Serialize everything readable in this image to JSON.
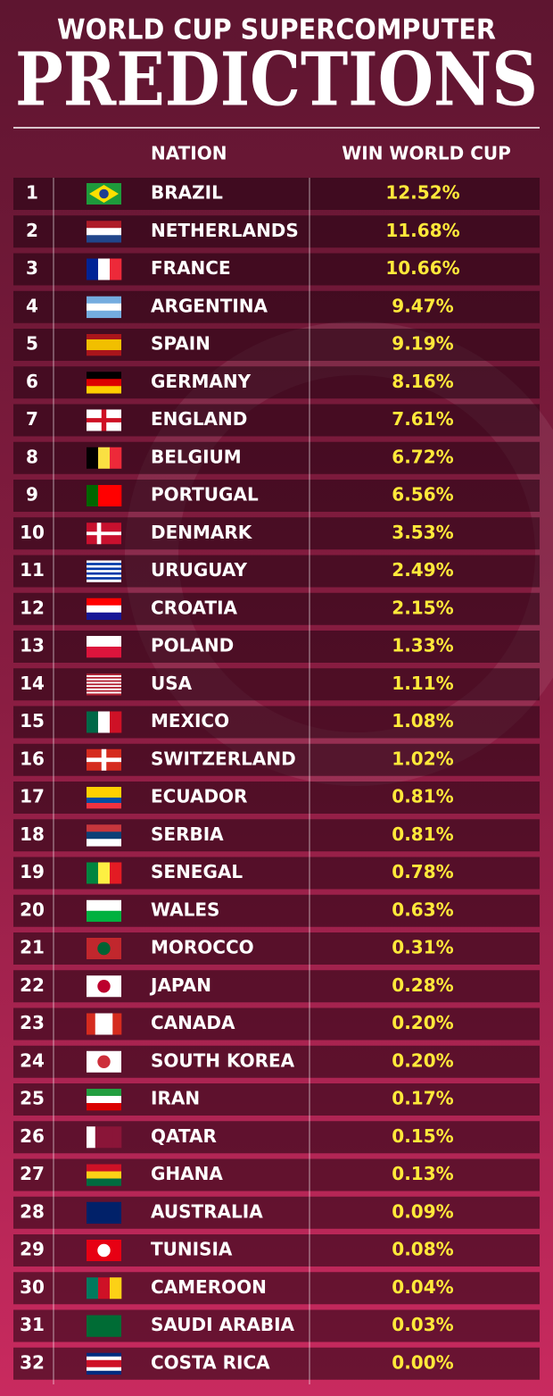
{
  "header": {
    "title": "WORLD CUP SUPERCOMPUTER",
    "subtitle": "PREDICTIONS"
  },
  "table": {
    "columns": [
      "NATION",
      "WIN WORLD CUP"
    ],
    "rows": [
      [
        1,
        "BRAZIL",
        "12.52%"
      ],
      [
        2,
        "NETHERLANDS",
        "11.68%"
      ],
      [
        3,
        "FRANCE",
        "10.66%"
      ],
      [
        4,
        "ARGENTINA",
        "9.47%"
      ],
      [
        5,
        "SPAIN",
        "9.19%"
      ],
      [
        6,
        "GERMANY",
        "8.16%"
      ],
      [
        7,
        "ENGLAND",
        "7.61%"
      ],
      [
        8,
        "BELGIUM",
        "6.72%"
      ],
      [
        9,
        "PORTUGAL",
        "6.56%"
      ],
      [
        10,
        "DENMARK",
        "3.53%"
      ],
      [
        11,
        "URUGUAY",
        "2.49%"
      ],
      [
        12,
        "CROATIA",
        "2.15%"
      ],
      [
        13,
        "POLAND",
        "1.33%"
      ],
      [
        14,
        "USA",
        "1.11%"
      ],
      [
        15,
        "MEXICO",
        "1.08%"
      ],
      [
        16,
        "SWITZERLAND",
        "1.02%"
      ],
      [
        17,
        "ECUADOR",
        "0.81%"
      ],
      [
        18,
        "SERBIA",
        "0.81%"
      ],
      [
        19,
        "SENEGAL",
        "0.78%"
      ],
      [
        20,
        "WALES",
        "0.63%"
      ],
      [
        21,
        "MOROCCO",
        "0.31%"
      ],
      [
        22,
        "JAPAN",
        "0.28%"
      ],
      [
        23,
        "CANADA",
        "0.20%"
      ],
      [
        24,
        "SOUTH KOREA",
        "0.20%"
      ],
      [
        25,
        "IRAN",
        "0.17%"
      ],
      [
        26,
        "QATAR",
        "0.15%"
      ],
      [
        27,
        "GHANA",
        "0.13%"
      ],
      [
        28,
        "AUSTRALIA",
        "0.09%"
      ],
      [
        29,
        "TUNISIA",
        "0.08%"
      ],
      [
        30,
        "CAMEROON",
        "0.04%"
      ],
      [
        31,
        "SAUDI ARABIA",
        "0.03%"
      ],
      [
        32,
        "COSTA RICA",
        "0.00%"
      ]
    ]
  }
}
